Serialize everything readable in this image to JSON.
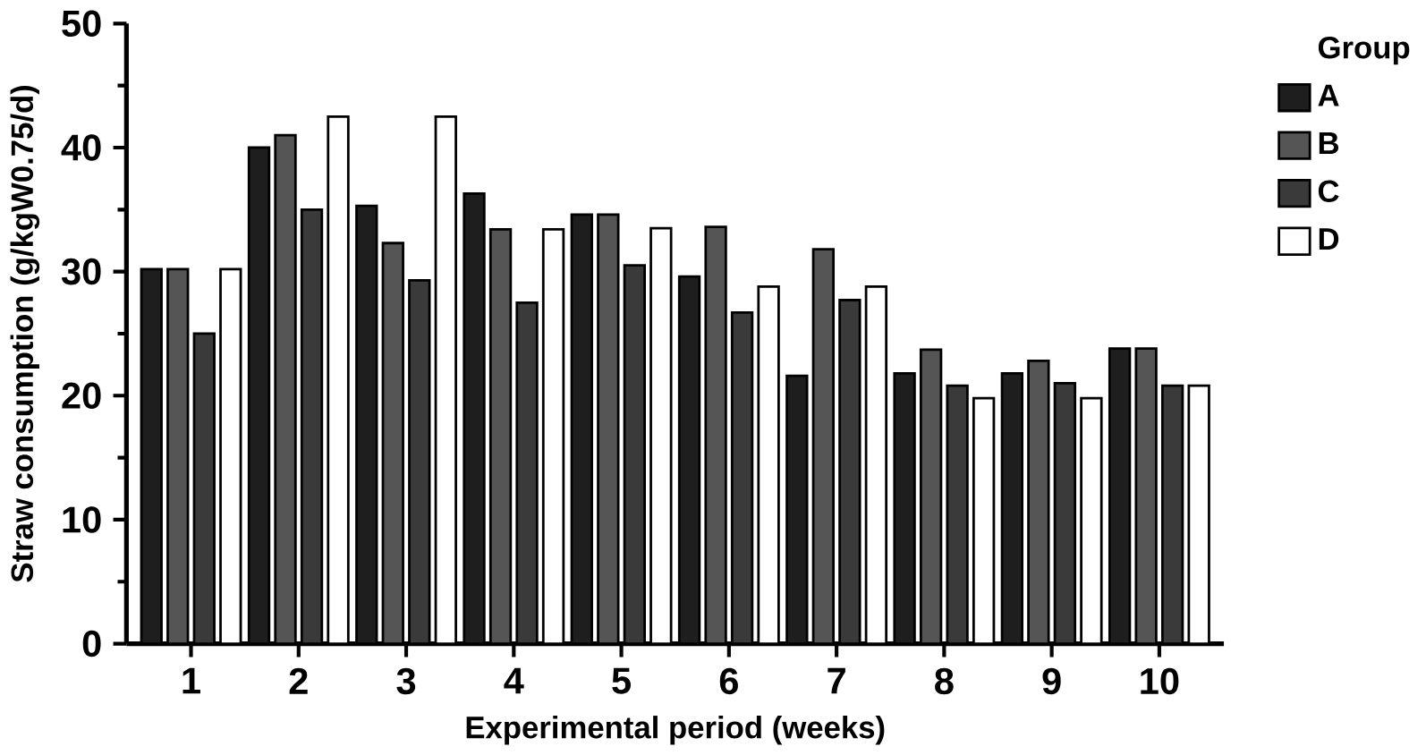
{
  "chart_data": {
    "type": "bar",
    "xlabel": "Experimental period (weeks)",
    "ylabel": "Straw consumption (g/kgW0.75/d)",
    "legend_title": "Group",
    "categories": [
      "1",
      "2",
      "3",
      "4",
      "5",
      "6",
      "7",
      "8",
      "9",
      "10"
    ],
    "series": [
      {
        "name": "A",
        "color": "#1e1e1e",
        "values": [
          30.2,
          40,
          35.3,
          36.3,
          34.6,
          29.6,
          21.6,
          21.8,
          21.8,
          23.8
        ]
      },
      {
        "name": "B",
        "color": "#555555",
        "values": [
          30.2,
          41,
          32.3,
          33.4,
          34.6,
          33.6,
          31.8,
          23.7,
          22.8,
          23.8
        ]
      },
      {
        "name": "C",
        "color": "#3a3a3a",
        "values": [
          25,
          35,
          29.3,
          27.5,
          30.5,
          26.7,
          27.7,
          20.8,
          21,
          20.8
        ]
      },
      {
        "name": "D",
        "color": "#ffffff",
        "values": [
          30.2,
          42.5,
          42.5,
          33.4,
          33.5,
          28.8,
          28.8,
          19.8,
          19.8,
          20.8
        ]
      }
    ],
    "ylim": [
      0,
      50
    ],
    "yticks": [
      0,
      10,
      20,
      30,
      40,
      50
    ],
    "grid": false,
    "legend": "right"
  }
}
